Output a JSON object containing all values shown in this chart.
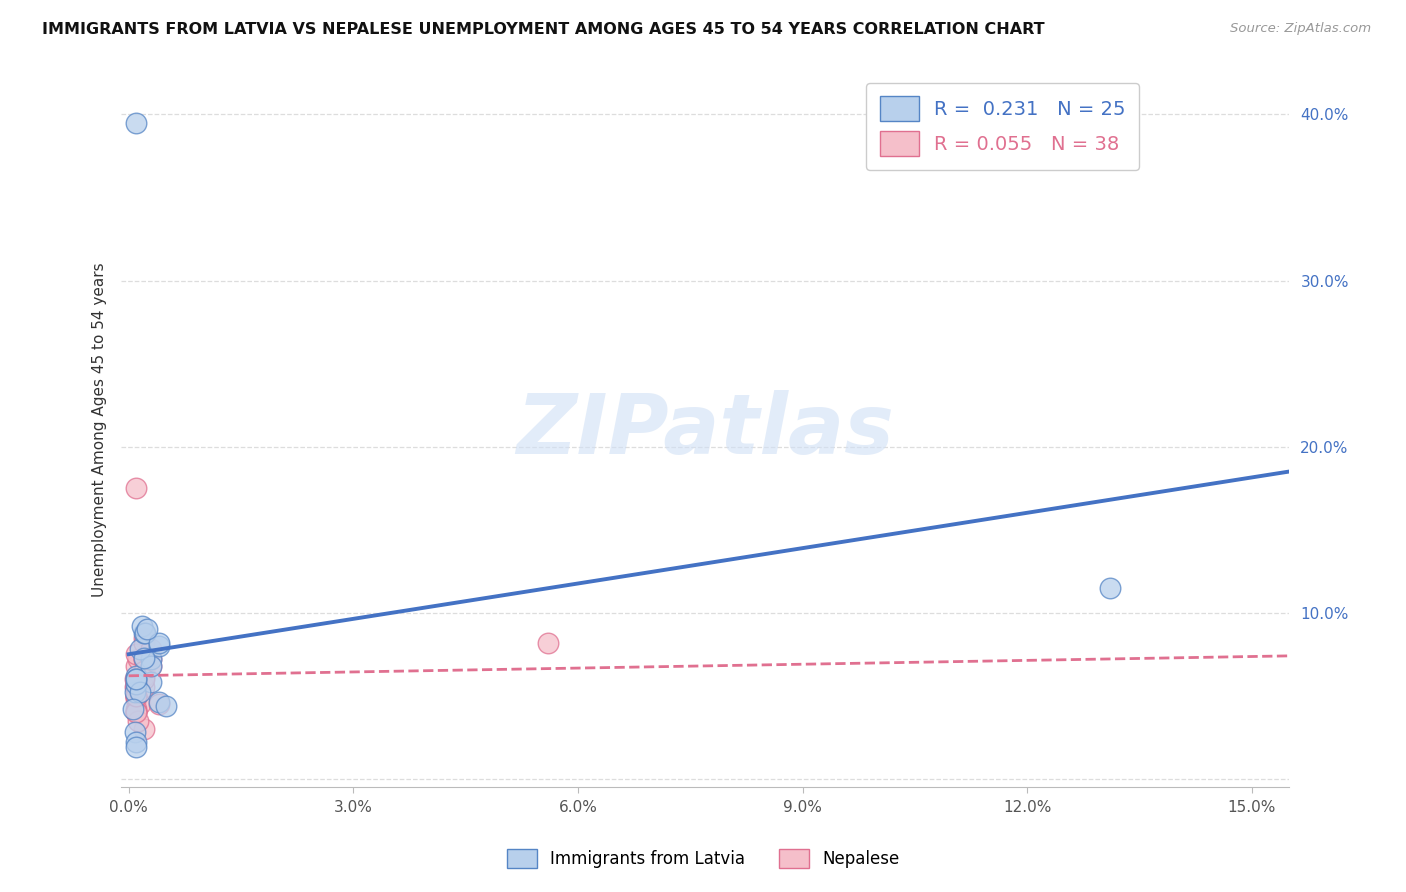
{
  "title": "IMMIGRANTS FROM LATVIA VS NEPALESE UNEMPLOYMENT AMONG AGES 45 TO 54 YEARS CORRELATION CHART",
  "source": "Source: ZipAtlas.com",
  "ylabel": "Unemployment Among Ages 45 to 54 years",
  "xlim": [
    -0.001,
    0.155
  ],
  "ylim": [
    -0.005,
    0.425
  ],
  "xticks": [
    0.0,
    0.03,
    0.06,
    0.09,
    0.12,
    0.15
  ],
  "yticks": [
    0.0,
    0.1,
    0.2,
    0.3,
    0.4
  ],
  "xticklabels": [
    "0.0%",
    "3.0%",
    "6.0%",
    "9.0%",
    "12.0%",
    "15.0%"
  ],
  "yticklabels": [
    "",
    "10.0%",
    "20.0%",
    "30.0%",
    "40.0%"
  ],
  "legend_blue_r": "0.231",
  "legend_blue_n": "25",
  "legend_pink_r": "0.055",
  "legend_pink_n": "38",
  "legend_label_blue": "Immigrants from Latvia",
  "legend_label_pink": "Nepalese",
  "blue_fill_color": "#b8d0ec",
  "pink_fill_color": "#f5bfca",
  "blue_edge_color": "#5585c5",
  "pink_edge_color": "#e07090",
  "blue_line_color": "#4472c4",
  "pink_line_color": "#e07090",
  "ytick_color": "#4472c4",
  "watermark_text": "ZIPatlas",
  "watermark_color": "#d0e0f5",
  "blue_scatter_x": [
    0.003,
    0.001,
    0.0015,
    0.002,
    0.001,
    0.0018,
    0.003,
    0.004,
    0.0008,
    0.0022,
    0.001,
    0.003,
    0.002,
    0.004,
    0.001,
    0.0015,
    0.0025,
    0.0006,
    0.001,
    0.004,
    0.005,
    0.0008,
    0.001,
    0.001,
    0.131
  ],
  "blue_scatter_y": [
    0.072,
    0.395,
    0.078,
    0.088,
    0.062,
    0.092,
    0.058,
    0.08,
    0.052,
    0.088,
    0.057,
    0.068,
    0.073,
    0.082,
    0.06,
    0.052,
    0.09,
    0.042,
    0.06,
    0.046,
    0.044,
    0.028,
    0.022,
    0.019,
    0.115
  ],
  "pink_scatter_x": [
    0.0008,
    0.001,
    0.001,
    0.0012,
    0.0008,
    0.002,
    0.001,
    0.002,
    0.001,
    0.001,
    0.0015,
    0.002,
    0.001,
    0.003,
    0.002,
    0.001,
    0.001,
    0.002,
    0.001,
    0.002,
    0.001,
    0.003,
    0.002,
    0.001,
    0.002,
    0.003,
    0.001,
    0.002,
    0.004,
    0.001,
    0.001,
    0.0012,
    0.001,
    0.002,
    0.001,
    0.056,
    0.001,
    0.001
  ],
  "pink_scatter_y": [
    0.06,
    0.175,
    0.068,
    0.072,
    0.055,
    0.085,
    0.075,
    0.072,
    0.048,
    0.06,
    0.045,
    0.082,
    0.042,
    0.078,
    0.065,
    0.055,
    0.04,
    0.072,
    0.058,
    0.065,
    0.05,
    0.072,
    0.055,
    0.04,
    0.062,
    0.068,
    0.05,
    0.03,
    0.045,
    0.055,
    0.04,
    0.035,
    0.05,
    0.06,
    0.055,
    0.082,
    0.04,
    0.05
  ],
  "blue_trend_x0": 0.0,
  "blue_trend_x1": 0.155,
  "blue_trend_y0": 0.075,
  "blue_trend_y1": 0.185,
  "pink_trend_x0": 0.0,
  "pink_trend_x1": 0.155,
  "pink_trend_y0": 0.062,
  "pink_trend_y1": 0.074,
  "background_color": "#ffffff",
  "grid_color": "#dddddd",
  "title_fontsize": 11.5,
  "tick_fontsize": 11,
  "legend_fontsize": 13
}
